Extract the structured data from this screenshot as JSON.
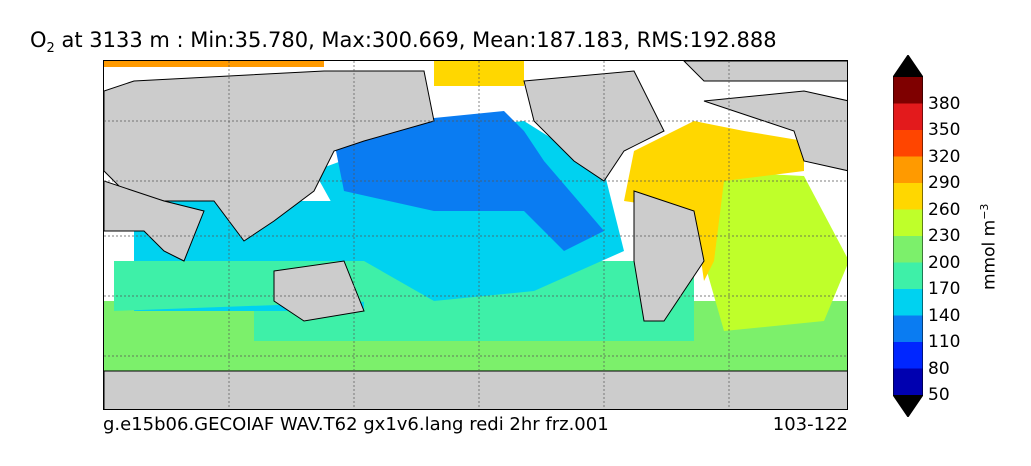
{
  "title": {
    "var": "O",
    "sub": "2",
    "rest": " at 3133 m : Min:35.780, Max:300.669, Mean:187.183, RMS:192.888"
  },
  "footer": {
    "case": "g.e15b06.GECOIAF WAV.T62 gx1v6.lang redi 2hr frz.001",
    "years": "103-122"
  },
  "colorbar": {
    "unit": "mmol m",
    "unit_exp": "−3",
    "labels": [
      "380",
      "350",
      "320",
      "290",
      "260",
      "230",
      "200",
      "170",
      "140",
      "110",
      "80",
      "50"
    ],
    "colors": [
      "#7f0000",
      "#e31a1c",
      "#ff4500",
      "#ff9a00",
      "#ffd700",
      "#bfff2a",
      "#7cf06b",
      "#3ef0a8",
      "#00d2f0",
      "#0a7cf2",
      "#0026ff",
      "#0000b0",
      "#00007a"
    ]
  },
  "map": {
    "land_color": "#cccccc",
    "grid": true,
    "fills": {
      "arctic": "#ffd700",
      "atlantic": "#ffd700",
      "pacific_north": "#0a7cf2",
      "pacific_mid": "#00d2f0",
      "indian": "#00d2f0",
      "south_mid": "#3ef0a8",
      "south_atl": "#bfff2a",
      "southern": "#7cf06b",
      "deep_blue": "#0026ff"
    }
  }
}
